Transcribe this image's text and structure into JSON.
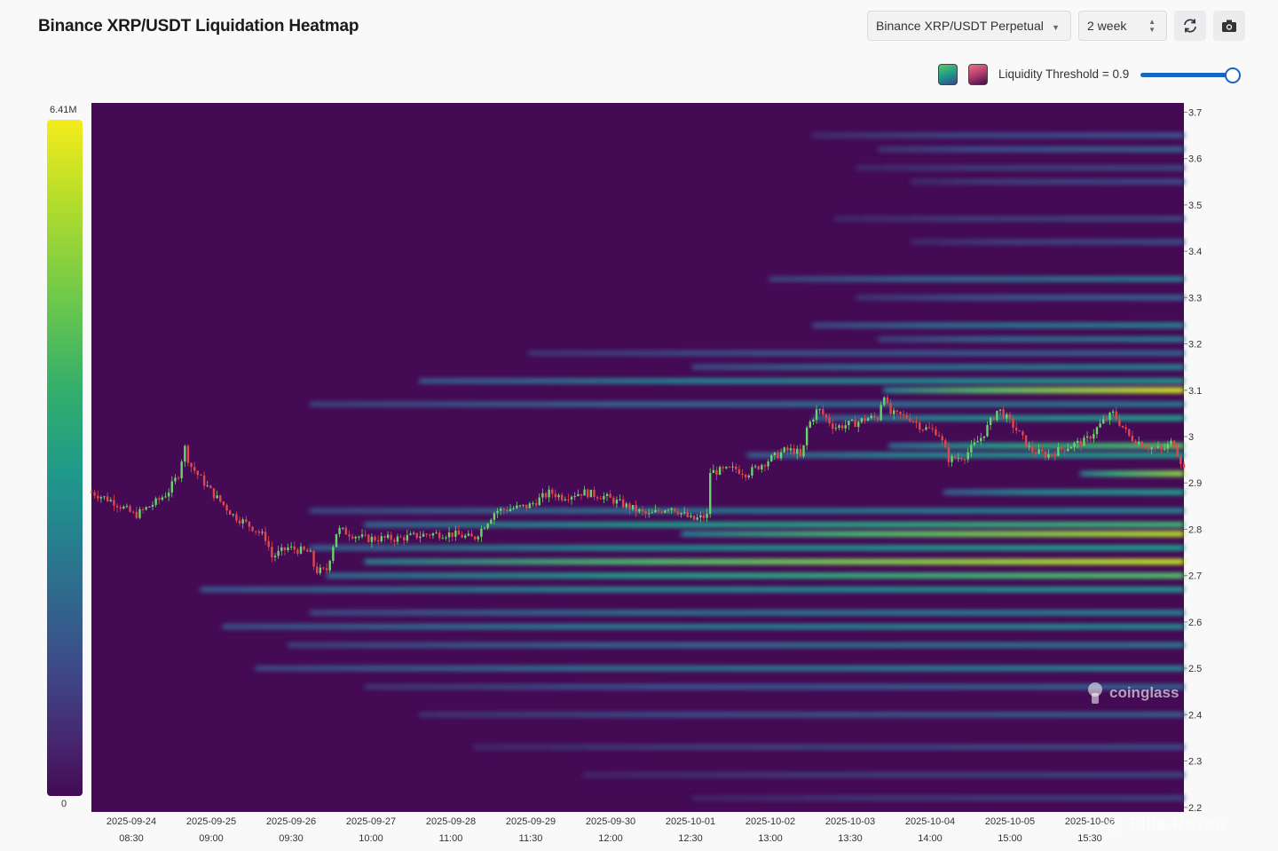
{
  "header": {
    "title": "Binance XRP/USDT Liquidation Heatmap",
    "pair_select": "Binance XRP/USDT Perpetual",
    "range_select": "2 week",
    "refresh_icon": "refresh-icon",
    "camera_icon": "camera-icon"
  },
  "threshold": {
    "label": "Liquidity Threshold = 0.9",
    "value": 0.9,
    "swatch_colors": [
      "#1f9a8a",
      "#c24a6a"
    ]
  },
  "colorbar": {
    "max_label": "6.41M",
    "min_label": "0"
  },
  "watermarks": {
    "brand": "coinglass",
    "author": "@ Blue Raven"
  },
  "colors": {
    "background": "#f9f9fa",
    "heat_low": "#440b54",
    "heat_mid": "#26808e",
    "heat_high": "#f4ec1c",
    "candle_up": "#6bd36b",
    "candle_down": "#e0464a",
    "accent": "#1667c4"
  },
  "chart_data": {
    "type": "heatmap",
    "title": "Binance XRP/USDT Liquidation Heatmap",
    "ylim": [
      2.19,
      3.72
    ],
    "y_ticks": [
      3.7,
      3.6,
      3.5,
      3.4,
      3.3,
      3.2,
      3.1,
      3,
      2.9,
      2.8,
      2.7,
      2.6,
      2.5,
      2.4,
      2.3,
      2.2
    ],
    "x_ticks": [
      {
        "date": "2025-09-24",
        "time": "08:30"
      },
      {
        "date": "2025-09-25",
        "time": "09:00"
      },
      {
        "date": "2025-09-26",
        "time": "09:30"
      },
      {
        "date": "2025-09-27",
        "time": "10:00"
      },
      {
        "date": "2025-09-28",
        "time": "11:00"
      },
      {
        "date": "2025-09-29",
        "time": "11:30"
      },
      {
        "date": "2025-09-30",
        "time": "12:00"
      },
      {
        "date": "2025-10-01",
        "time": "12:30"
      },
      {
        "date": "2025-10-02",
        "time": "13:00"
      },
      {
        "date": "2025-10-03",
        "time": "13:30"
      },
      {
        "date": "2025-10-04",
        "time": "14:00"
      },
      {
        "date": "2025-10-05",
        "time": "15:00"
      },
      {
        "date": "2025-10-06",
        "time": "15:30"
      }
    ],
    "price_path": [
      [
        0.0,
        2.88
      ],
      [
        0.02,
        2.86
      ],
      [
        0.04,
        2.83
      ],
      [
        0.06,
        2.86
      ],
      [
        0.07,
        2.88
      ],
      [
        0.08,
        2.92
      ],
      [
        0.085,
        2.98
      ],
      [
        0.09,
        2.94
      ],
      [
        0.11,
        2.88
      ],
      [
        0.13,
        2.83
      ],
      [
        0.15,
        2.8
      ],
      [
        0.16,
        2.78
      ],
      [
        0.165,
        2.74
      ],
      [
        0.18,
        2.76
      ],
      [
        0.2,
        2.75
      ],
      [
        0.205,
        2.71
      ],
      [
        0.215,
        2.71
      ],
      [
        0.225,
        2.8
      ],
      [
        0.25,
        2.78
      ],
      [
        0.28,
        2.78
      ],
      [
        0.31,
        2.79
      ],
      [
        0.33,
        2.79
      ],
      [
        0.35,
        2.78
      ],
      [
        0.37,
        2.84
      ],
      [
        0.4,
        2.85
      ],
      [
        0.42,
        2.88
      ],
      [
        0.43,
        2.87
      ],
      [
        0.45,
        2.88
      ],
      [
        0.47,
        2.87
      ],
      [
        0.49,
        2.85
      ],
      [
        0.51,
        2.83
      ],
      [
        0.53,
        2.85
      ],
      [
        0.55,
        2.82
      ],
      [
        0.565,
        2.83
      ],
      [
        0.56,
        2.83
      ],
      [
        0.555,
        2.85
      ],
      [
        0.555,
        2.92
      ],
      [
        0.59,
        2.93
      ],
      [
        0.6,
        2.92
      ],
      [
        0.62,
        2.95
      ],
      [
        0.635,
        2.97
      ],
      [
        0.645,
        2.97
      ],
      [
        0.65,
        2.95
      ],
      [
        0.655,
        3.02
      ],
      [
        0.665,
        3.06
      ],
      [
        0.68,
        3.02
      ],
      [
        0.7,
        3.03
      ],
      [
        0.71,
        3.04
      ],
      [
        0.72,
        3.04
      ],
      [
        0.725,
        3.1
      ],
      [
        0.73,
        3.05
      ],
      [
        0.75,
        3.04
      ],
      [
        0.76,
        3.02
      ],
      [
        0.775,
        3.01
      ],
      [
        0.785,
        2.95
      ],
      [
        0.8,
        2.96
      ],
      [
        0.815,
        3.0
      ],
      [
        0.83,
        3.06
      ],
      [
        0.845,
        3.02
      ],
      [
        0.86,
        2.97
      ],
      [
        0.875,
        2.96
      ],
      [
        0.895,
        2.98
      ],
      [
        0.91,
        2.99
      ],
      [
        0.925,
        3.03
      ],
      [
        0.935,
        3.05
      ],
      [
        0.95,
        3.0
      ],
      [
        0.965,
        2.98
      ],
      [
        0.98,
        2.97
      ],
      [
        0.99,
        2.99
      ],
      [
        1.0,
        2.93
      ]
    ],
    "liquidity_bands": [
      {
        "price": 3.65,
        "start": 0.66,
        "intensity": 0.25
      },
      {
        "price": 3.62,
        "start": 0.72,
        "intensity": 0.3
      },
      {
        "price": 3.58,
        "start": 0.7,
        "intensity": 0.2
      },
      {
        "price": 3.55,
        "start": 0.75,
        "intensity": 0.22
      },
      {
        "price": 3.47,
        "start": 0.68,
        "intensity": 0.2
      },
      {
        "price": 3.42,
        "start": 0.75,
        "intensity": 0.22
      },
      {
        "price": 3.34,
        "start": 0.62,
        "intensity": 0.4
      },
      {
        "price": 3.3,
        "start": 0.7,
        "intensity": 0.3
      },
      {
        "price": 3.24,
        "start": 0.66,
        "intensity": 0.45
      },
      {
        "price": 3.21,
        "start": 0.72,
        "intensity": 0.4
      },
      {
        "price": 3.18,
        "start": 0.4,
        "intensity": 0.3
      },
      {
        "price": 3.15,
        "start": 0.55,
        "intensity": 0.45
      },
      {
        "price": 3.12,
        "start": 0.3,
        "intensity": 0.55
      },
      {
        "price": 3.1,
        "start": 0.725,
        "intensity": 0.95
      },
      {
        "price": 3.07,
        "start": 0.2,
        "intensity": 0.4
      },
      {
        "price": 3.04,
        "start": 0.66,
        "intensity": 0.6
      },
      {
        "price": 2.98,
        "start": 0.73,
        "intensity": 0.75
      },
      {
        "price": 2.96,
        "start": 0.6,
        "intensity": 0.6
      },
      {
        "price": 2.92,
        "start": 0.905,
        "intensity": 0.85
      },
      {
        "price": 2.88,
        "start": 0.78,
        "intensity": 0.6
      },
      {
        "price": 2.84,
        "start": 0.2,
        "intensity": 0.45
      },
      {
        "price": 2.81,
        "start": 0.25,
        "intensity": 0.7
      },
      {
        "price": 2.79,
        "start": 0.54,
        "intensity": 0.9
      },
      {
        "price": 2.76,
        "start": 0.2,
        "intensity": 0.6
      },
      {
        "price": 2.73,
        "start": 0.25,
        "intensity": 0.92
      },
      {
        "price": 2.7,
        "start": 0.215,
        "intensity": 0.75
      },
      {
        "price": 2.67,
        "start": 0.1,
        "intensity": 0.55
      },
      {
        "price": 2.62,
        "start": 0.2,
        "intensity": 0.45
      },
      {
        "price": 2.59,
        "start": 0.12,
        "intensity": 0.5
      },
      {
        "price": 2.55,
        "start": 0.18,
        "intensity": 0.4
      },
      {
        "price": 2.5,
        "start": 0.15,
        "intensity": 0.45
      },
      {
        "price": 2.46,
        "start": 0.25,
        "intensity": 0.3
      },
      {
        "price": 2.4,
        "start": 0.3,
        "intensity": 0.28
      },
      {
        "price": 2.33,
        "start": 0.35,
        "intensity": 0.22
      },
      {
        "price": 2.27,
        "start": 0.45,
        "intensity": 0.2
      },
      {
        "price": 2.22,
        "start": 0.55,
        "intensity": 0.18
      }
    ]
  }
}
